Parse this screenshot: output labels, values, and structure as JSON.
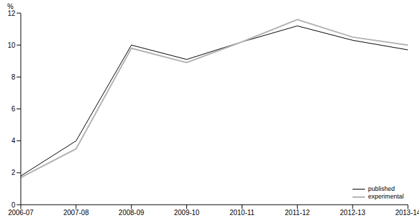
{
  "chart_data": {
    "type": "line",
    "y_label": "%",
    "categories": [
      "2006-07",
      "2007-08",
      "2008-09",
      "2009-10",
      "2010-11",
      "2011-12",
      "2012-13",
      "2013-14"
    ],
    "series": [
      {
        "name": "published",
        "color": "#000000",
        "values": [
          1.8,
          4.0,
          10.0,
          9.1,
          10.2,
          11.2,
          10.3,
          9.7
        ]
      },
      {
        "name": "experimental",
        "color": "#b3b3b3",
        "values": [
          1.7,
          3.5,
          9.8,
          8.9,
          10.2,
          11.6,
          10.5,
          10.0
        ]
      }
    ],
    "ylim": [
      0,
      12
    ],
    "yticks": [
      0,
      2,
      4,
      6,
      8,
      10,
      12
    ],
    "grid": false,
    "legend": "bottom-right"
  }
}
